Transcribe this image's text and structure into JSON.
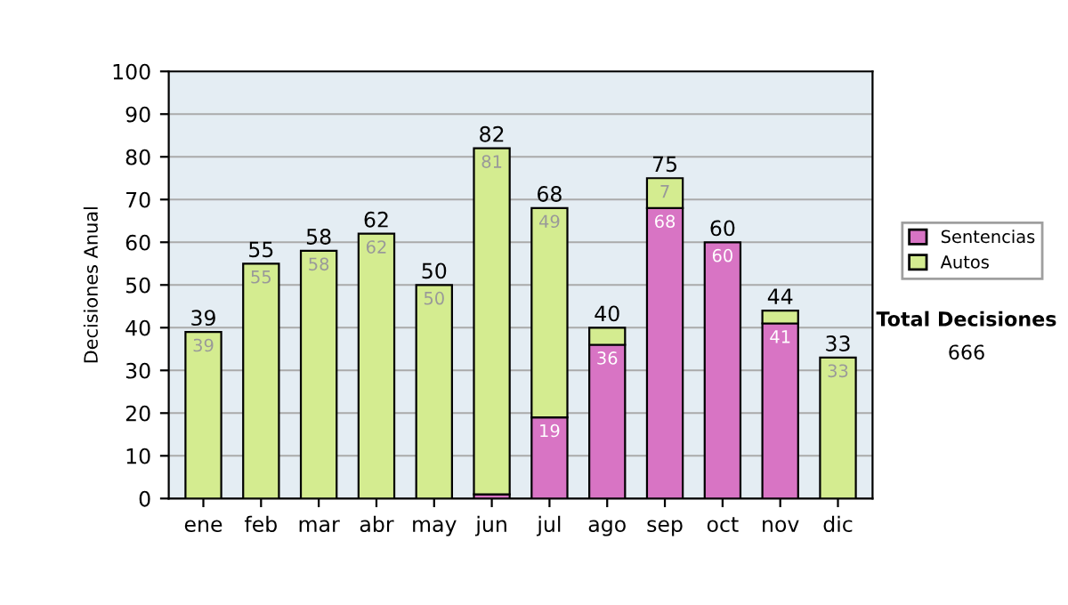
{
  "chart_data": {
    "type": "bar",
    "stacked": true,
    "ylabel": "Decisiones Anual",
    "categories": [
      "ene",
      "feb",
      "mar",
      "abr",
      "may",
      "jun",
      "jul",
      "ago",
      "sep",
      "oct",
      "nov",
      "dic"
    ],
    "series": [
      {
        "name": "Sentencias",
        "color": "#d874c4",
        "values": [
          0,
          0,
          0,
          0,
          0,
          1,
          19,
          36,
          68,
          60,
          41,
          0
        ],
        "value_labels": [
          null,
          null,
          null,
          null,
          null,
          null,
          "19",
          "36",
          "68",
          "60",
          "41",
          null
        ]
      },
      {
        "name": "Autos",
        "color": "#d4ec90",
        "values": [
          39,
          55,
          58,
          62,
          50,
          81,
          49,
          4,
          7,
          0,
          3,
          33
        ],
        "value_labels": [
          "39",
          "55",
          "58",
          "62",
          "50",
          "81",
          "49",
          null,
          "7",
          null,
          null,
          "33"
        ]
      }
    ],
    "totals": [
      "39",
      "55",
      "58",
      "62",
      "50",
      "82",
      "68",
      "40",
      "75",
      "60",
      "44",
      "33"
    ],
    "ylim": [
      0,
      100
    ],
    "yticks": [
      0,
      10,
      20,
      30,
      40,
      50,
      60,
      70,
      80,
      90,
      100
    ],
    "grid": "y",
    "legend": "right",
    "annotations": [
      "Total Decisiones",
      "666"
    ]
  }
}
